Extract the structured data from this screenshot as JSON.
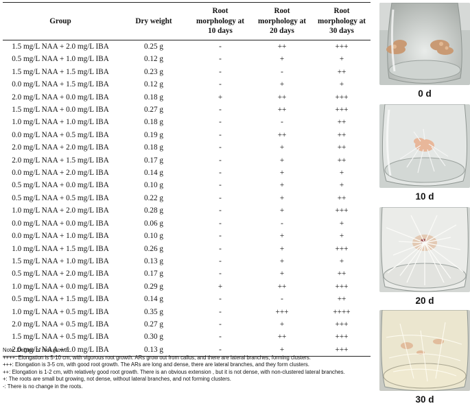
{
  "table": {
    "headers": [
      "Group",
      "Dry weight",
      "Root morphology at 10 days",
      "Root morphology at 20 days",
      "Root morphology at 30 days"
    ],
    "rows": [
      [
        "1.5 mg/L NAA + 2.0 mg/L IBA",
        "0.25 g",
        "-",
        "++",
        "+++"
      ],
      [
        "0.5 mg/L NAA + 1.0 mg/L IBA",
        "0.12 g",
        "-",
        "+",
        "+"
      ],
      [
        "1.5 mg/L NAA + 1.5 mg/L IBA",
        "0.23 g",
        "-",
        "-",
        "++"
      ],
      [
        "0.0 mg/L NAA + 1.5 mg/L IBA",
        "0.12 g",
        "-",
        "+",
        "+"
      ],
      [
        "2.0 mg/L NAA + 0.0 mg/L IBA",
        "0.18 g",
        "+",
        "++",
        "+++"
      ],
      [
        "1.5 mg/L NAA + 0.0 mg/L IBA",
        "0.27 g",
        "-",
        "++",
        "+++"
      ],
      [
        "1.0 mg/L NAA + 1.0 mg/L IBA",
        "0.18 g",
        "-",
        "-",
        "++"
      ],
      [
        "0.0 mg/L NAA + 0.5 mg/L IBA",
        "0.19 g",
        "-",
        "++",
        "++"
      ],
      [
        "2.0 mg/L NAA + 2.0 mg/L IBA",
        "0.18 g",
        "-",
        "+",
        "++"
      ],
      [
        "2.0 mg/L NAA + 1.5 mg/L IBA",
        "0.17 g",
        "-",
        "+",
        "++"
      ],
      [
        "0.0 mg/L NAA + 2.0 mg/L IBA",
        "0.14 g",
        "-",
        "+",
        "+"
      ],
      [
        "0.5 mg/L NAA + 0.0 mg/L IBA",
        "0.10 g",
        "-",
        "+",
        "+"
      ],
      [
        "0.5 mg/L NAA + 0.5 mg/L IBA",
        "0.22 g",
        "-",
        "+",
        "++"
      ],
      [
        "1.0 mg/L NAA + 2.0 mg/L IBA",
        "0.28 g",
        "-",
        "+",
        "+++"
      ],
      [
        "0.0 mg/L NAA + 0.0 mg/L IBA",
        "0.06 g",
        "-",
        "-",
        "+"
      ],
      [
        "0.0 mg/L NAA + 1.0 mg/L IBA",
        "0.10 g",
        "-",
        "+",
        "+"
      ],
      [
        "1.0 mg/L NAA + 1.5 mg/L IBA",
        "0.26 g",
        "-",
        "+",
        "+++"
      ],
      [
        "1.5 mg/L NAA + 1.0 mg/L IBA",
        "0.13 g",
        "-",
        "+",
        "+"
      ],
      [
        "0.5 mg/L NAA + 2.0 mg/L IBA",
        "0.17 g",
        "-",
        "+",
        "++"
      ],
      [
        "1.0 mg/L NAA + 0.0 mg/L IBA",
        "0.29 g",
        "+",
        "++",
        "+++"
      ],
      [
        "0.5 mg/L NAA + 1.5 mg/L IBA",
        "0.14 g",
        "-",
        "-",
        "++"
      ],
      [
        "1.0 mg/L NAA + 0.5 mg/L IBA",
        "0.35 g",
        "-",
        "+++",
        "++++"
      ],
      [
        "2.0 mg/L NAA + 0.5 mg/L IBA",
        "0.27 g",
        "-",
        "+",
        "+++"
      ],
      [
        "1.5 mg/L NAA + 0.5 mg/L IBA",
        "0.30 g",
        "-",
        "++",
        "+++"
      ],
      [
        "2.0 mg/L NAA + 1.0 mg/L IBA",
        "0.13 g",
        "-",
        "+",
        "+++"
      ]
    ]
  },
  "notes": [
    "Note: Degree of root growth:",
    "++++: Elongation is 5-10 cm, with vigorous root growth. ARs grow out from callus, and there are lateral branches, forming clusters.",
    "+++: Elongation is 3-5 cm, with good root growth. The ARs are long and dense, there are lateral branches, and they form clusters.",
    "++: Elongation is 1-2 cm, with relatively good root growth. There is an obvious extension , but it is not dense, with non-clustered lateral branches.",
    "+: The roots are small but growing, not dense, without lateral branches, and not forming clusters.",
    "-: There is no change in the roots."
  ],
  "photos": [
    {
      "caption": "0 d"
    },
    {
      "caption": "10 d"
    },
    {
      "caption": "20 d"
    },
    {
      "caption": "30 d"
    }
  ]
}
